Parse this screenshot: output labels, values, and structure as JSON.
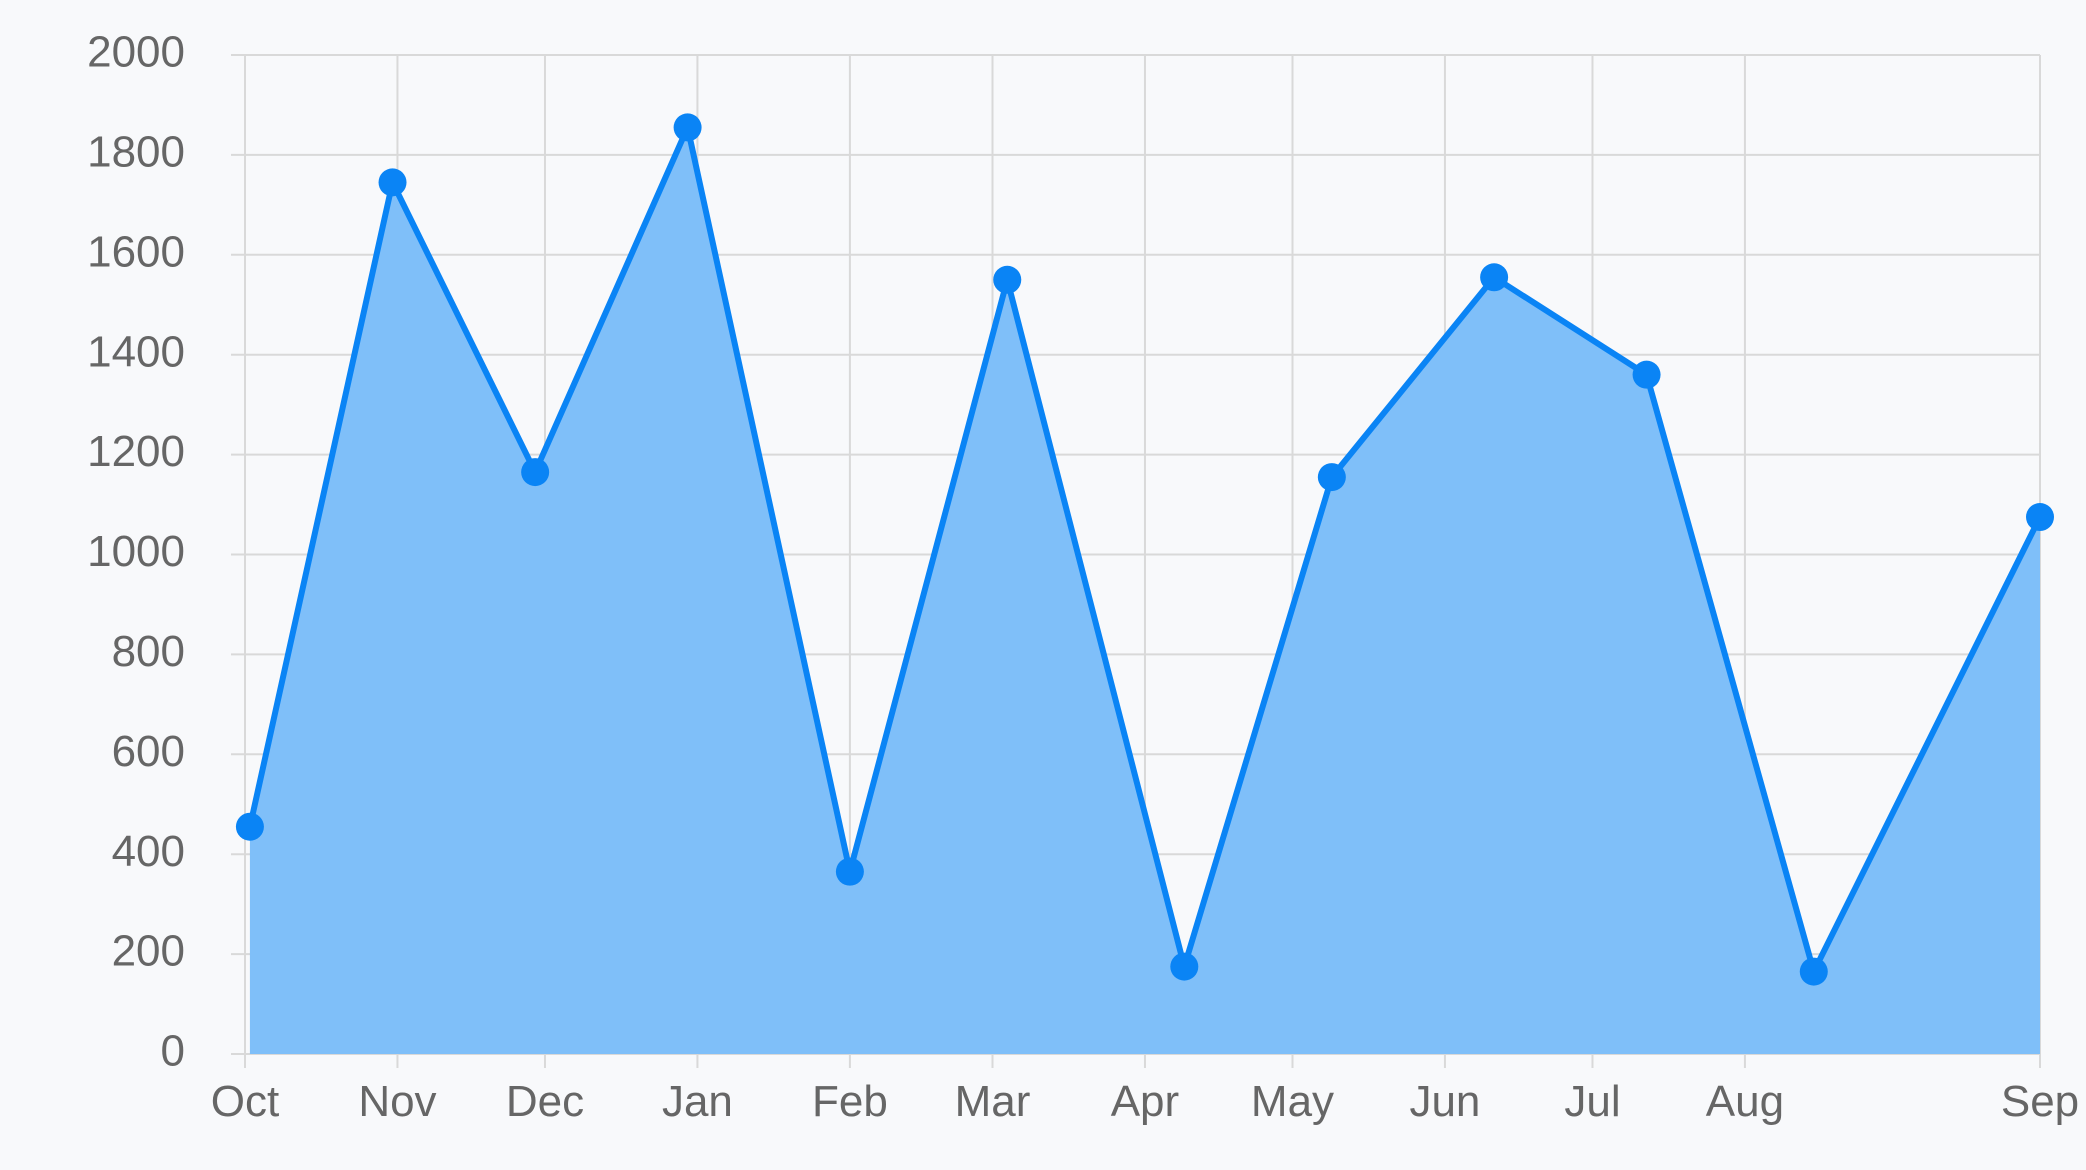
{
  "chart_data": {
    "type": "area",
    "title": "",
    "xlabel": "",
    "ylabel": "",
    "ylim": [
      0,
      2000
    ],
    "yticks": [
      0,
      200,
      400,
      600,
      800,
      1000,
      1200,
      1400,
      1600,
      1800,
      2000
    ],
    "grid": true,
    "legend": "none",
    "colors": {
      "line": "#0a84f5",
      "fill": "#7fbff9",
      "point": "#0a84f5",
      "grid": "#d9d9d9",
      "tick_text": "#666666",
      "background": "#f8f9fb"
    },
    "x_axis": {
      "type": "time",
      "start": "2023-10-01",
      "end": "2024-09-30",
      "tick_labels": [
        {
          "label": "Oct",
          "date": "2023-10-01"
        },
        {
          "label": "Nov",
          "date": "2023-11-01"
        },
        {
          "label": "Dec",
          "date": "2023-12-01"
        },
        {
          "label": "Jan",
          "date": "2024-01-01"
        },
        {
          "label": "Feb",
          "date": "2024-02-01"
        },
        {
          "label": "Mar",
          "date": "2024-03-01"
        },
        {
          "label": "Apr",
          "date": "2024-04-01"
        },
        {
          "label": "May",
          "date": "2024-05-01"
        },
        {
          "label": "Jun",
          "date": "2024-06-01"
        },
        {
          "label": "Jul",
          "date": "2024-07-01"
        },
        {
          "label": "Aug",
          "date": "2024-08-01"
        },
        {
          "label": "Sep",
          "date": "2024-09-30"
        }
      ]
    },
    "points": [
      {
        "date": "2023-10-02",
        "y": 455
      },
      {
        "date": "2023-10-31",
        "y": 1745
      },
      {
        "date": "2023-11-29",
        "y": 1165
      },
      {
        "date": "2023-12-30",
        "y": 1855
      },
      {
        "date": "2024-02-01",
        "y": 365
      },
      {
        "date": "2024-03-04",
        "y": 1550
      },
      {
        "date": "2024-04-09",
        "y": 175
      },
      {
        "date": "2024-05-09",
        "y": 1155
      },
      {
        "date": "2024-06-11",
        "y": 1555
      },
      {
        "date": "2024-07-12",
        "y": 1360
      },
      {
        "date": "2024-08-15",
        "y": 165
      },
      {
        "date": "2024-09-30",
        "y": 1075
      }
    ]
  }
}
